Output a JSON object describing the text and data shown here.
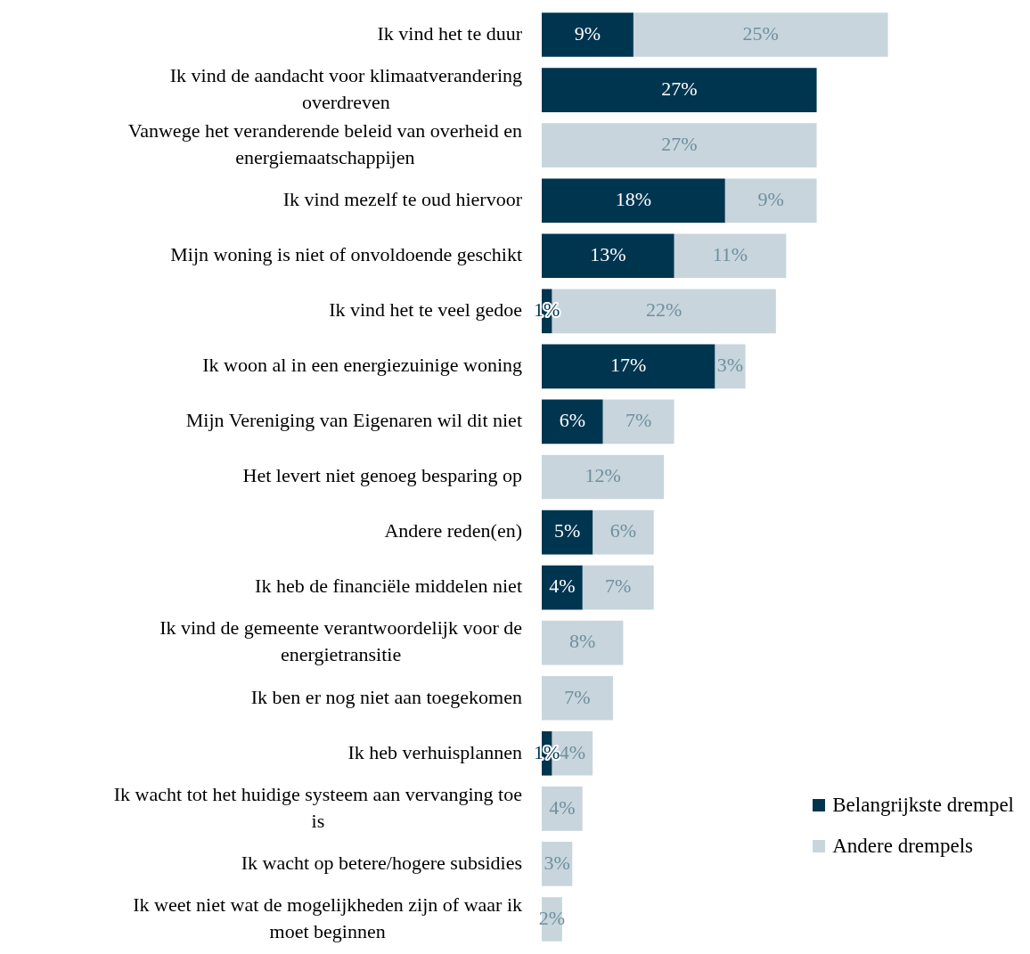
{
  "chart_data": {
    "type": "bar",
    "orientation": "horizontal",
    "stacked": true,
    "legend": "bottom right",
    "categories": [
      "Ik vind het te duur",
      "Ik vind de aandacht voor klimaatverandering overdreven",
      "Vanwege het veranderende beleid van overheid en energiemaatschappijen",
      "Ik vind mezelf te oud hiervoor",
      "Mijn woning is niet of onvoldoende geschikt",
      "Ik vind het te veel gedoe",
      "Ik woon al in een energiezuinige woning",
      "Mijn Vereniging van Eigenaren wil dit niet",
      "Het levert niet genoeg besparing op",
      "Andere reden(en)",
      "Ik heb de financiële middelen niet",
      "Ik vind de gemeente verantwoordelijk voor de energietransitie",
      "Ik ben er nog niet aan toegekomen",
      "Ik heb verhuisplannen",
      "Ik wacht tot het huidige systeem aan vervanging toe is",
      "Ik wacht op betere/hogere subsidies",
      "Ik weet niet wat de mogelijkheden zijn of waar ik moet beginnen"
    ],
    "series": [
      {
        "name": "Belangrijkste drempel",
        "color": "#003550",
        "values": [
          9,
          27,
          null,
          18,
          13,
          1,
          17,
          6,
          null,
          5,
          4,
          null,
          null,
          1,
          null,
          null,
          null
        ],
        "value_labels": [
          "9%",
          "27%",
          null,
          "18%",
          "13%",
          "1%",
          "17%",
          "6%",
          null,
          "5%",
          "4%",
          null,
          null,
          "1%",
          null,
          null,
          null
        ]
      },
      {
        "name": "Andere drempels",
        "color": "#c8d5dc",
        "values": [
          25,
          null,
          27,
          9,
          11,
          22,
          3,
          7,
          12,
          6,
          7,
          8,
          7,
          4,
          4,
          3,
          2
        ],
        "value_labels": [
          "25%",
          null,
          "27%",
          "9%",
          "11%",
          "22%",
          "3%",
          "7%",
          "12%",
          "6%",
          "7%",
          "8%",
          "7%",
          "4%",
          "4%",
          "3%",
          "2%"
        ]
      }
    ]
  }
}
